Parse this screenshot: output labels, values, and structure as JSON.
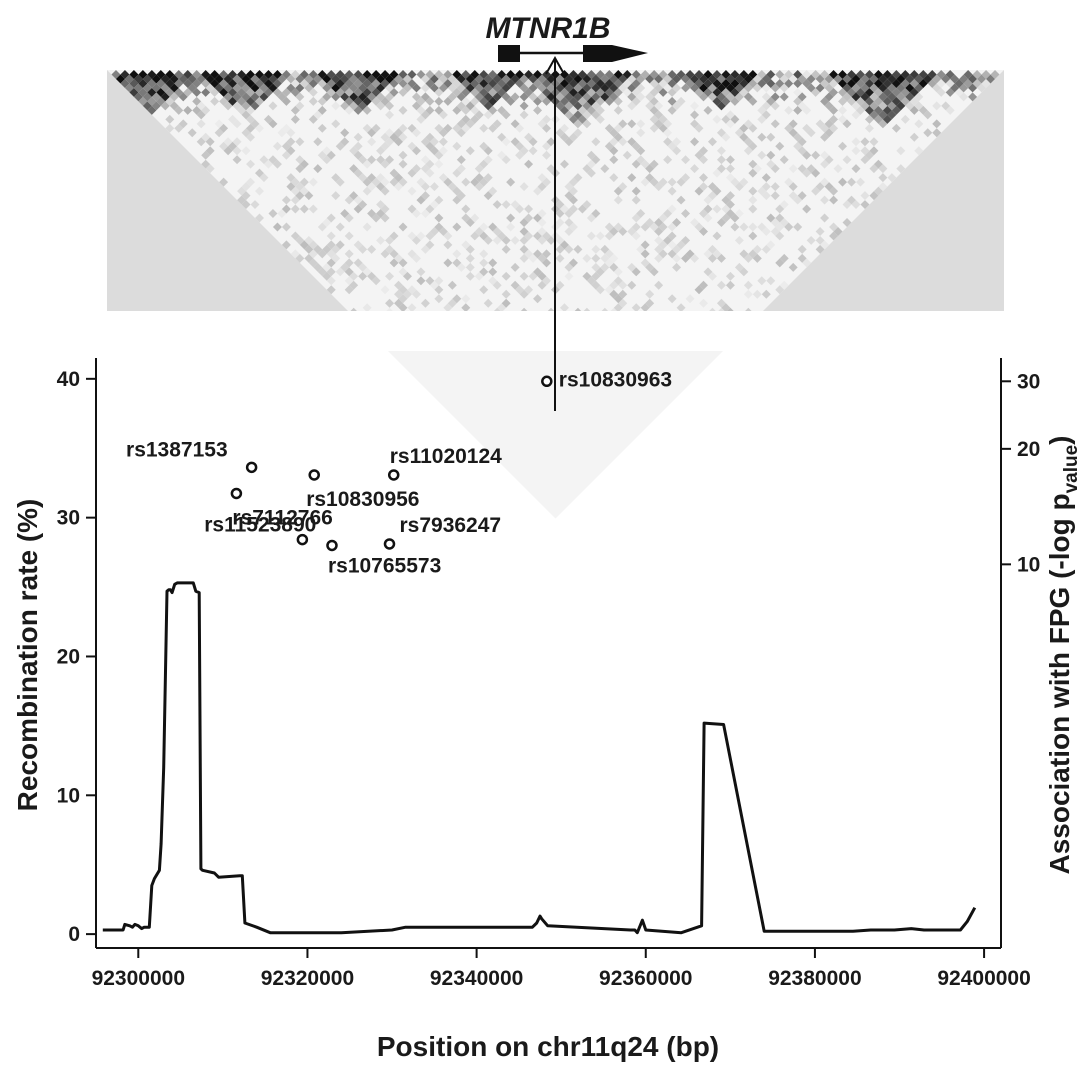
{
  "gene": {
    "name": "MTNR1B"
  },
  "chart_data": {
    "type": "line",
    "xlabel": "Position on chr11q24 (bp)",
    "ylabel_left": "Recombination rate (%)",
    "ylabel_right_main": "Association with FPG (-log p",
    "ylabel_right_sub": "value",
    "ylabel_right_close": ")",
    "xlim": [
      92295000,
      92402000
    ],
    "ylim_left": [
      -1,
      41.5
    ],
    "ylim_right": [
      1.0,
      34.5
    ],
    "right_axis_scale": "log",
    "x_ticks": [
      92300000,
      92320000,
      92340000,
      92360000,
      92380000,
      92400000
    ],
    "x_tick_labels": [
      "92300000",
      "92320000",
      "92340000",
      "92360000",
      "92380000",
      "92400000"
    ],
    "y_left_ticks": [
      0,
      10,
      20,
      30,
      40
    ],
    "y_left_tick_labels": [
      "0",
      "10",
      "20",
      "30",
      "40"
    ],
    "y_right_ticks": [
      10,
      20,
      30
    ],
    "y_right_tick_labels": [
      "10",
      "20",
      "30"
    ],
    "recombination_rate": {
      "x": [
        92295800,
        92298200,
        92298400,
        92299000,
        92299300,
        92299600,
        92300000,
        92300400,
        92300700,
        92301300,
        92301600,
        92301900,
        92302500,
        92302700,
        92303000,
        92303400,
        92303600,
        92303800,
        92304000,
        92304300,
        92304600,
        92306500,
        92306800,
        92307200,
        92307400,
        92307600,
        92309000,
        92309500,
        92312000,
        92312300,
        92312600,
        92314000,
        92315600,
        92324000,
        92330000,
        92331600,
        92346600,
        92347100,
        92347500,
        92347700,
        92348400,
        92358200,
        92358700,
        92359000,
        92359600,
        92360000,
        92364200,
        92366600,
        92366900,
        92369200,
        92374000,
        92380000,
        92384500,
        92386600,
        92387400,
        92389400,
        92391400,
        92392900,
        92397200,
        92398000,
        92398900
      ],
      "values": [
        0.3,
        0.3,
        0.7,
        0.6,
        0.5,
        0.7,
        0.6,
        0.4,
        0.5,
        0.5,
        3.5,
        4.0,
        4.6,
        6.5,
        12.0,
        24.7,
        24.8,
        24.8,
        24.6,
        25.2,
        25.3,
        25.3,
        24.7,
        24.6,
        4.7,
        4.6,
        4.4,
        4.1,
        4.2,
        4.2,
        0.8,
        0.5,
        0.1,
        0.1,
        0.3,
        0.5,
        0.5,
        0.8,
        1.3,
        1.1,
        0.6,
        0.3,
        0.3,
        0.1,
        1.0,
        0.3,
        0.1,
        0.6,
        15.2,
        15.1,
        0.2,
        0.2,
        0.2,
        0.3,
        0.3,
        0.3,
        0.4,
        0.3,
        0.3,
        0.9,
        1.9
      ]
    },
    "snps": [
      {
        "name": "rs10830963",
        "x": 92348300,
        "p": 30.0
      },
      {
        "name": "rs1387153",
        "x": 92313400,
        "p": 17.9
      },
      {
        "name": "rs10830956",
        "x": 92320800,
        "p": 17.1
      },
      {
        "name": "rs11020124",
        "x": 92330200,
        "p": 17.1
      },
      {
        "name": "rs7112766",
        "x": 92311600,
        "p": 15.3
      },
      {
        "name": "rs11523890",
        "x": 92319400,
        "p": 11.6
      },
      {
        "name": "rs7936247",
        "x": 92329700,
        "p": 11.3
      },
      {
        "name": "rs10765573",
        "x": 92322900,
        "p": 11.2
      }
    ]
  },
  "ld_heatmap": {
    "shading": "grayscale r-squared",
    "n_markers": 100,
    "background_color": "#dcdcdc",
    "low_color": "#ffffff",
    "high_color": "#111111"
  }
}
